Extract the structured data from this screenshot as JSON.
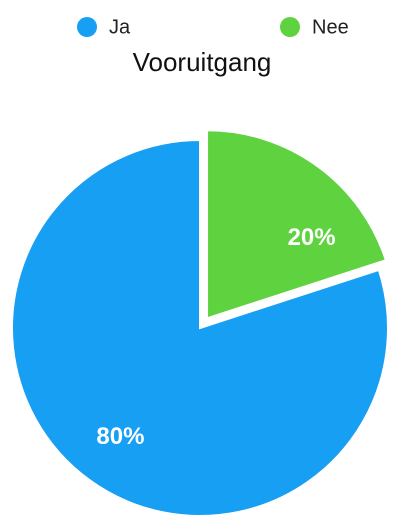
{
  "chart_data": {
    "type": "pie",
    "title": "Vooruitgang",
    "categories": [
      "Ja",
      "Nee"
    ],
    "values": [
      80,
      20
    ],
    "value_labels": [
      "80%",
      "20%"
    ],
    "colors": [
      "#17a0f3",
      "#5fd33f"
    ],
    "legend": "top"
  }
}
